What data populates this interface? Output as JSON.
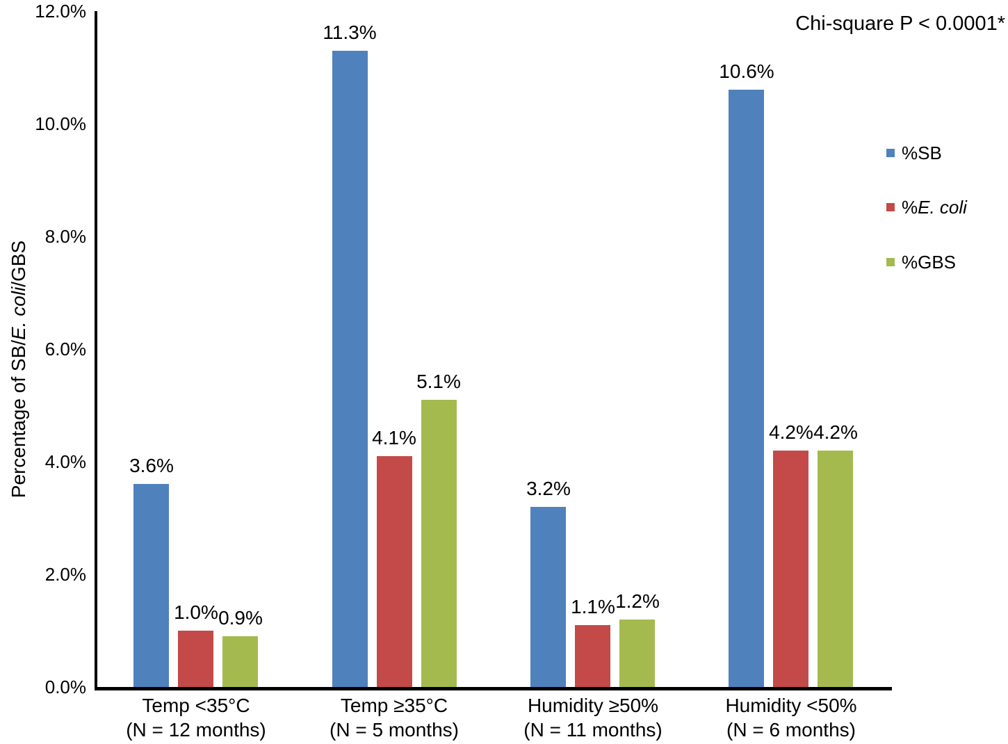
{
  "chart_data": {
    "type": "bar",
    "title": "",
    "annotation": "Chi-square P < 0.0001*",
    "ylabel": "Percentage of SB/E. coli/GBS",
    "ylabel_segments": [
      {
        "text": "Percentage of SB/",
        "italic": false
      },
      {
        "text": "E. coli",
        "italic": true
      },
      {
        "text": "/GBS",
        "italic": false
      }
    ],
    "categories": [
      {
        "line1": "Temp <35°C",
        "line2": "(N = 12 months)"
      },
      {
        "line1": "Temp ≥35°C",
        "line2": "(N = 5 months)"
      },
      {
        "line1": "Humidity ≥50%",
        "line2": "(N = 11 months)"
      },
      {
        "line1": "Humidity <50%",
        "line2": "(N = 6 months)"
      }
    ],
    "series": [
      {
        "name": "%SB",
        "name_segments": [
          {
            "text": "%SB",
            "italic": false
          }
        ],
        "color": "#4F81BD",
        "values": [
          3.6,
          11.3,
          3.2,
          10.6
        ],
        "labels": [
          "3.6%",
          "11.3%",
          "3.2%",
          "10.6%"
        ]
      },
      {
        "name": "%E. coli",
        "name_segments": [
          {
            "text": "%",
            "italic": false
          },
          {
            "text": "E. coli",
            "italic": true
          }
        ],
        "color": "#C34A48",
        "values": [
          1.0,
          4.1,
          1.1,
          4.2
        ],
        "labels": [
          "1.0%",
          "4.1%",
          "1.1%",
          "4.2%"
        ]
      },
      {
        "name": "%GBS",
        "name_segments": [
          {
            "text": "%GBS",
            "italic": false
          }
        ],
        "color": "#A4BA4E",
        "values": [
          0.9,
          5.1,
          1.2,
          4.2
        ],
        "labels": [
          "0.9%",
          "5.1%",
          "1.2%",
          "4.2%"
        ]
      }
    ],
    "y_ticks": [
      {
        "label": "0.0%",
        "value": 0
      },
      {
        "label": "2.0%",
        "value": 2
      },
      {
        "label": "4.0%",
        "value": 4
      },
      {
        "label": "6.0%",
        "value": 6
      },
      {
        "label": "8.0%",
        "value": 8
      },
      {
        "label": "10.0%",
        "value": 10
      },
      {
        "label": "12.0%",
        "value": 12
      }
    ],
    "ylim": [
      0,
      12
    ],
    "grid": false,
    "legend_position": "right"
  }
}
